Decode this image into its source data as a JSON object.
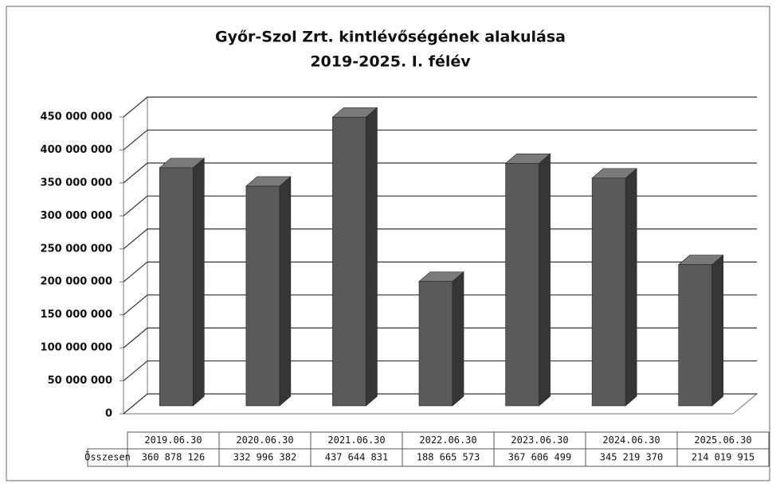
{
  "chart_data": {
    "type": "bar",
    "title": "Győr-Szol Zrt. kintlévőségének alakulása",
    "subtitle": "2019-2025. I. félév",
    "categories": [
      "2019.06.30",
      "2020.06.30",
      "2021.06.30",
      "2022.06.30",
      "2023.06.30",
      "2024.06.30",
      "2025.06.30"
    ],
    "series": [
      {
        "name": "Összesen",
        "color": "#5a5a5a",
        "values": [
          360878126,
          332996382,
          437644831,
          188665573,
          367606499,
          345219370,
          214019915
        ],
        "value_labels": [
          "360 878 126",
          "332 996 382",
          "437 644 831",
          "188 665 573",
          "367 606 499",
          "345 219 370",
          "214 019 915"
        ]
      }
    ],
    "ylim": [
      0,
      450000000
    ],
    "yticks": [
      0,
      {
        "value": 50000000,
        "label": "50 000 000"
      },
      {
        "value": 100000000,
        "label": "100 000 000"
      },
      {
        "value": 150000000,
        "label": "150 000 000"
      },
      {
        "value": 200000000,
        "label": "200 000 000"
      },
      {
        "value": 250000000,
        "label": "250 000 000"
      },
      {
        "value": 300000000,
        "label": "300 000 000"
      },
      {
        "value": 350000000,
        "label": "350 000 000"
      },
      {
        "value": 400000000,
        "label": "400 000 000"
      },
      {
        "value": 450000000,
        "label": "450 000 000"
      }
    ],
    "grid": true
  }
}
